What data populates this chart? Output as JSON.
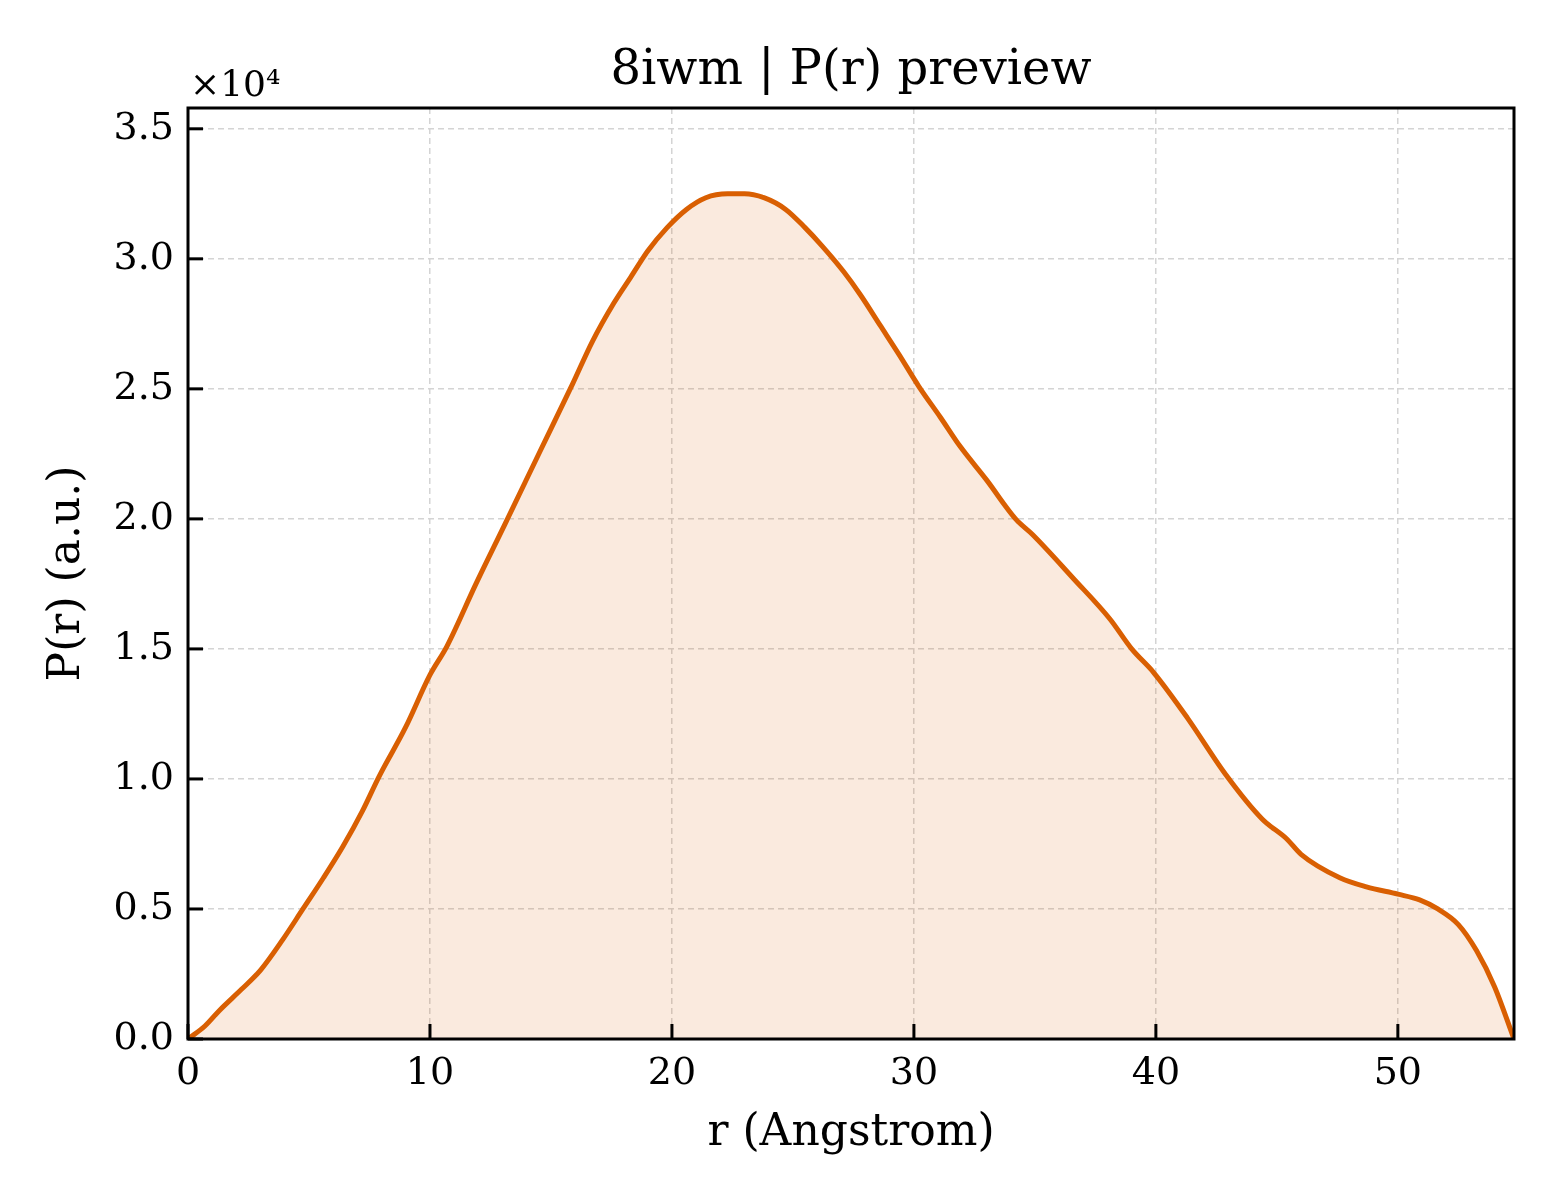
{
  "chart_data": {
    "type": "area",
    "title": "8iwm | P(r) preview",
    "xlabel": "r (Angstrom)",
    "ylabel": "P(r) (a.u.)",
    "annotations": [
      "×10⁴"
    ],
    "x": [
      0,
      0.7,
      1.3,
      2.2,
      3.0,
      3.9,
      4.75,
      5.6,
      6.4,
      7.2,
      7.9,
      9.0,
      10.0,
      10.7,
      11.9,
      13.1,
      14.55,
      15.9,
      16.7,
      17.6,
      18.3,
      19.0,
      19.8,
      20.6,
      21.4,
      22.3,
      23.0,
      23.8,
      24.7,
      25.5,
      26.2,
      27.1,
      27.8,
      28.6,
      29.4,
      30.2,
      31.1,
      31.9,
      33.0,
      34.2,
      34.9,
      36.6,
      38.1,
      39.0,
      39.9,
      41.3,
      42.9,
      44.4,
      45.4,
      46.0,
      47.6,
      48.7,
      50.0,
      50.9,
      51.65,
      52.5,
      53.25,
      54.0,
      54.8
    ],
    "values": [
      0,
      0.05,
      0.11,
      0.19,
      0.265,
      0.38,
      0.5,
      0.62,
      0.74,
      0.875,
      1.01,
      1.2,
      1.4,
      1.51,
      1.75,
      1.98,
      2.26,
      2.52,
      2.68,
      2.83,
      2.93,
      3.03,
      3.12,
      3.19,
      3.235,
      3.25,
      3.25,
      3.235,
      3.19,
      3.12,
      3.05,
      2.95,
      2.86,
      2.745,
      2.63,
      2.51,
      2.39,
      2.28,
      2.15,
      2.0,
      1.94,
      1.77,
      1.615,
      1.5,
      1.41,
      1.235,
      1.015,
      0.845,
      0.77,
      0.71,
      0.62,
      0.585,
      0.557,
      0.535,
      0.5,
      0.44,
      0.34,
      0.2,
      0
    ],
    "color": "#d95f02",
    "xlim": [
      0,
      54.8
    ],
    "xticks": [
      0,
      10,
      20,
      30,
      40,
      50
    ],
    "ylim": [
      0,
      3.58
    ],
    "yticks": [
      {
        "value": 0,
        "label": "0.0"
      },
      0.5,
      {
        "value": 1,
        "label": "1.0"
      },
      1.5,
      {
        "value": 2,
        "label": "2.0"
      },
      2.5,
      {
        "value": 3,
        "label": "3.0"
      },
      3.5
    ],
    "grid": true,
    "legend": false
  }
}
